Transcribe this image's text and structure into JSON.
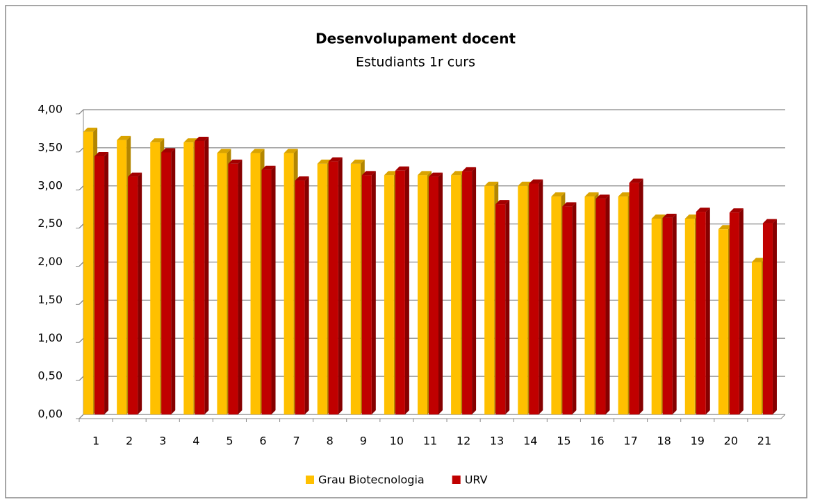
{
  "chart_data": {
    "type": "bar",
    "title": "Desenvolupament docent",
    "subtitle": "Estudiants 1r curs",
    "categories": [
      "1",
      "2",
      "3",
      "4",
      "5",
      "6",
      "7",
      "8",
      "9",
      "10",
      "11",
      "12",
      "13",
      "14",
      "15",
      "16",
      "17",
      "18",
      "19",
      "20",
      "21"
    ],
    "series": [
      {
        "name": "Grau Biotecnologia",
        "color": "#ffc000",
        "values": [
          3.71,
          3.6,
          3.57,
          3.57,
          3.43,
          3.43,
          3.43,
          3.29,
          3.29,
          3.14,
          3.14,
          3.14,
          3.0,
          3.0,
          2.86,
          2.86,
          2.86,
          2.57,
          2.57,
          2.43,
          2.0
        ]
      },
      {
        "name": "URV",
        "color": "#c00000",
        "values": [
          3.39,
          3.12,
          3.44,
          3.59,
          3.29,
          3.21,
          3.07,
          3.32,
          3.14,
          3.2,
          3.12,
          3.19,
          2.76,
          3.03,
          2.73,
          2.83,
          3.04,
          2.58,
          2.66,
          2.65,
          2.51
        ]
      }
    ],
    "ylim": [
      0,
      4
    ],
    "yticks": [
      {
        "value": 0,
        "label": "0,00"
      },
      {
        "value": 0.5,
        "label": "0,50"
      },
      {
        "value": 1,
        "label": "1,00"
      },
      {
        "value": 1.5,
        "label": "1,50"
      },
      {
        "value": 2,
        "label": "2,00"
      },
      {
        "value": 2.5,
        "label": "2,50"
      },
      {
        "value": 3,
        "label": "3,00"
      },
      {
        "value": 3.5,
        "label": "3,50"
      },
      {
        "value": 4,
        "label": "4,00"
      }
    ],
    "grid": true,
    "legend": "bottom"
  }
}
